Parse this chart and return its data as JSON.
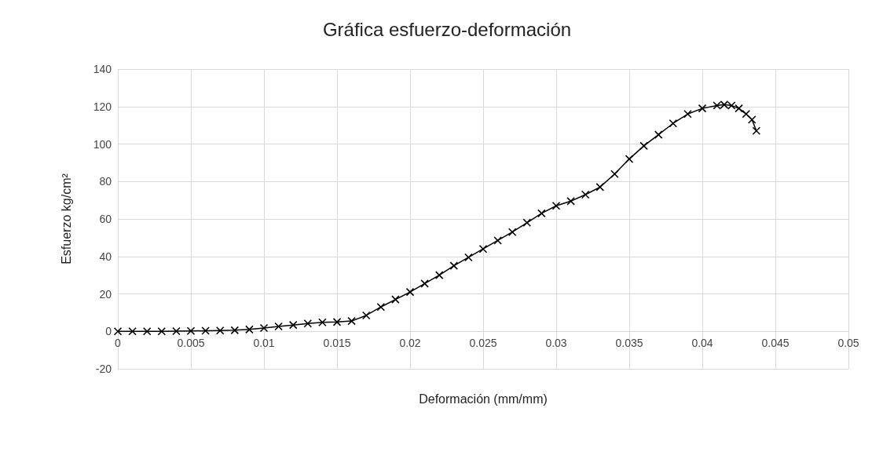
{
  "chart_data": {
    "type": "line",
    "title": "Gráfica esfuerzo-deformación",
    "xlabel": "Deformación (mm/mm)",
    "ylabel": "Esfuerzo kg/cm²",
    "xlim": [
      0,
      0.05
    ],
    "xticks": [
      0,
      0.005,
      0.01,
      0.015,
      0.02,
      0.025,
      0.03,
      0.035,
      0.04,
      0.045,
      0.05
    ],
    "ylim": [
      -20,
      140
    ],
    "yticks": [
      -20,
      0,
      20,
      40,
      60,
      80,
      100,
      120,
      140
    ],
    "grid": true,
    "marker": "cross",
    "line_style": "solid",
    "series": [
      {
        "color": "#000000",
        "x": [
          0,
          0.001,
          0.002,
          0.003,
          0.004,
          0.005,
          0.006,
          0.007,
          0.008,
          0.009,
          0.01,
          0.011,
          0.012,
          0.013,
          0.014,
          0.015,
          0.016,
          0.017,
          0.018,
          0.019,
          0.02,
          0.021,
          0.022,
          0.023,
          0.024,
          0.025,
          0.026,
          0.027,
          0.028,
          0.029,
          0.03,
          0.031,
          0.032,
          0.033,
          0.034,
          0.035,
          0.036,
          0.037,
          0.038,
          0.039,
          0.04,
          0.041,
          0.0415,
          0.042,
          0.0425,
          0.043,
          0.0434,
          0.0437
        ],
        "values": [
          0,
          0,
          0,
          0,
          0.1,
          0.2,
          0.3,
          0.4,
          0.6,
          1,
          1.8,
          2.6,
          3.4,
          4.2,
          4.8,
          5,
          5.5,
          8.5,
          13,
          17,
          21,
          25.5,
          30,
          35,
          39.5,
          44,
          48.5,
          53,
          58,
          63,
          67,
          69.5,
          73,
          77,
          84,
          92,
          99,
          105,
          111,
          116,
          119,
          120.5,
          121,
          120.5,
          119,
          116,
          113,
          107
        ]
      }
    ]
  }
}
